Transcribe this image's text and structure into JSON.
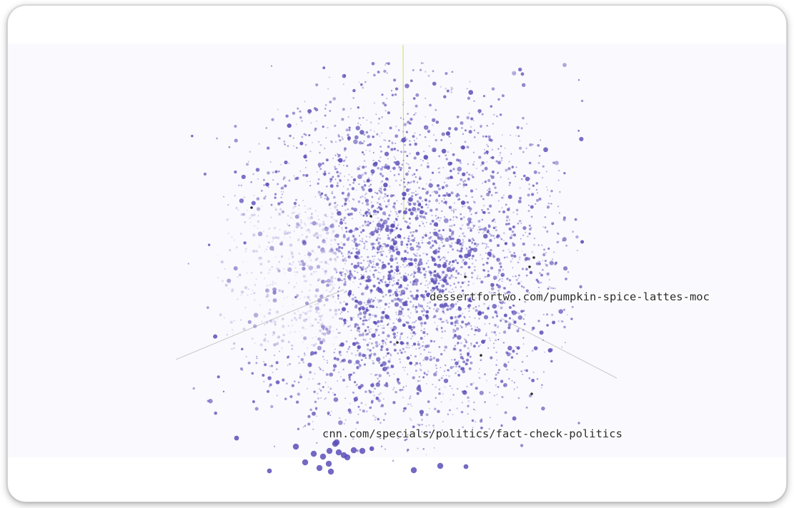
{
  "projection": {
    "point_color": "#5b4fb8",
    "highlight_color": "#161616",
    "vertical_axis_color": "#d8e27a",
    "horizontal_axis_color": "#c9c9c9",
    "background_color": "#faf9fd",
    "labels": [
      {
        "text": "dessertfortwo.com/pumpkin-spice-lattes-moc"
      },
      {
        "text": "cnn.com/specials/politics/fact-check-politics"
      }
    ]
  }
}
